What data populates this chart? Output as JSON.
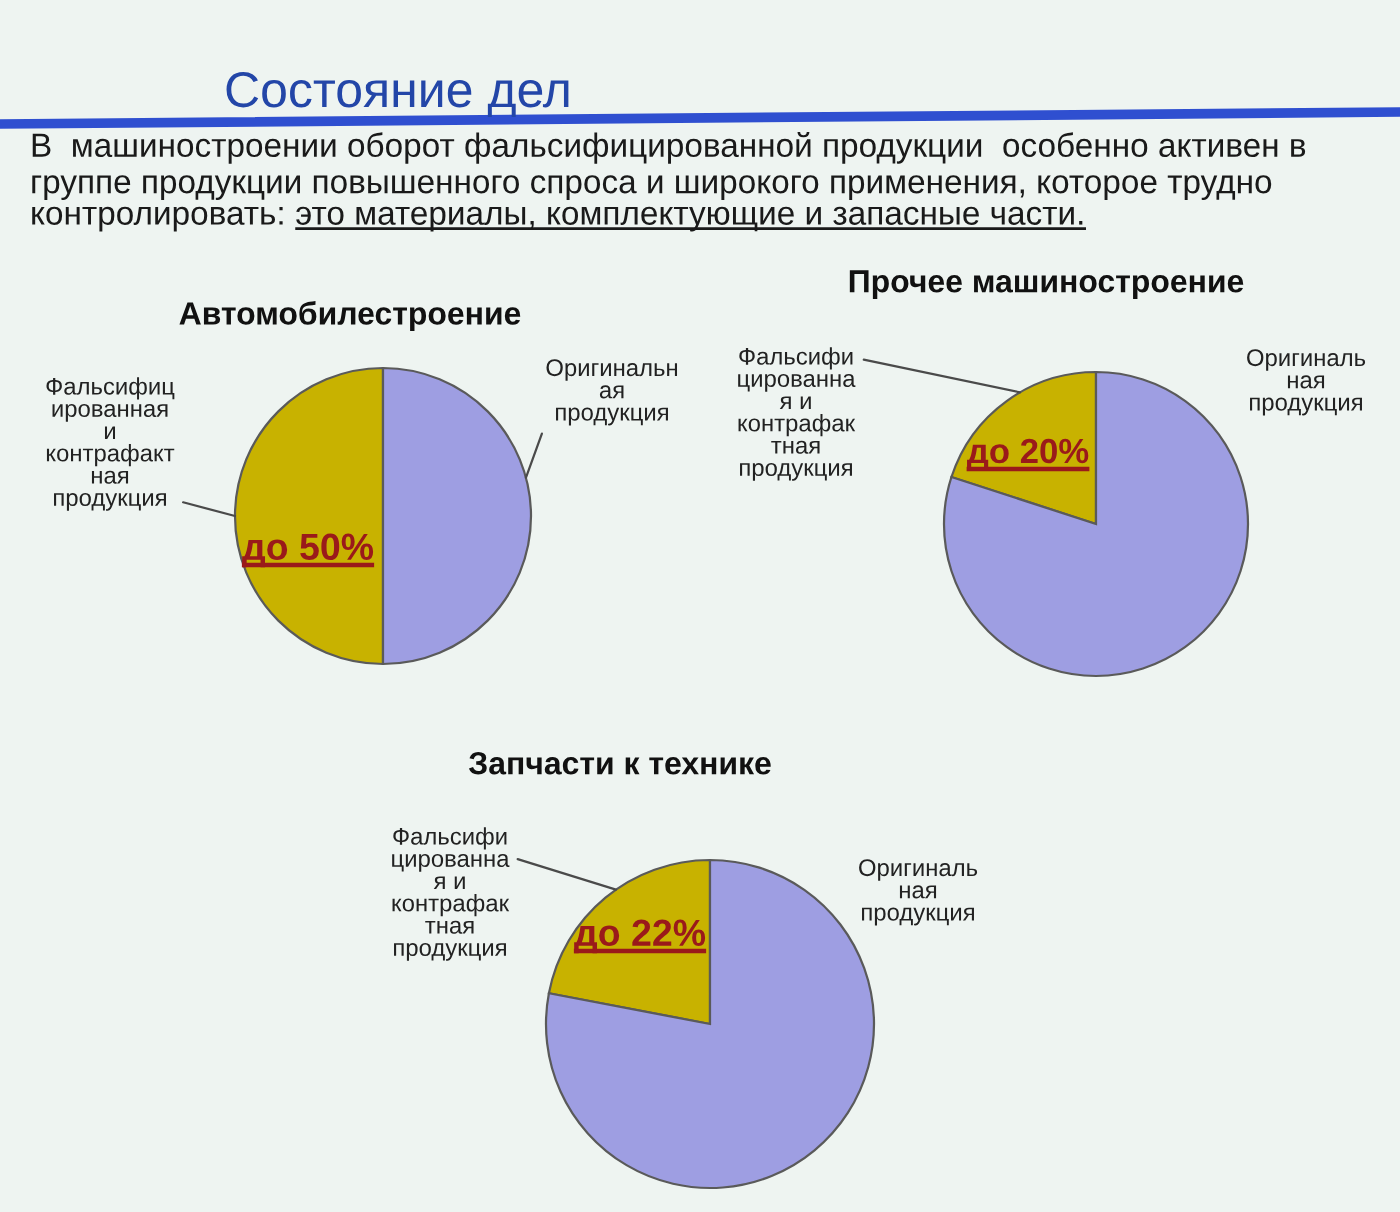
{
  "chart_data": [
    {
      "type": "other",
      "title": "Состояние дел",
      "subtitle": "В  машиностроении оборот фальсифицированной продукции  особенно активен в\nгруппе продукции повышенного спроса и широкого применения, которое трудно",
      "annotations": [
        "контролировать:",
        "это материалы, комплектующие и запасные части."
      ]
    },
    {
      "type": "pie",
      "title": "Автомобилестроение",
      "categories": [
        "Фальсифиц\nированная\nи\nконтрафакт\nная\nпродукция",
        "Оригинальн\nая\nпродукция"
      ],
      "values": [
        50,
        50
      ],
      "colors": [
        "#c8b200",
        "#9e9ee2"
      ],
      "value_labels": [
        "до 50%",
        null
      ]
    },
    {
      "type": "pie",
      "title": "Прочее машиностроение",
      "categories": [
        "Фальсифи\nцированна\nя и\nконтрафак\nтная\nпродукция",
        "Оригиналь\nная\nпродукция"
      ],
      "values": [
        20,
        80
      ],
      "colors": [
        "#c8b200",
        "#9e9ee2"
      ],
      "value_labels": [
        "до 20%",
        null
      ]
    },
    {
      "type": "pie",
      "title": "Запчасти к технике",
      "categories": [
        "Фальсифи\nцированна\nя и\nконтрафак\nтная\nпродукция",
        "Оригиналь\nная\nпродукция"
      ],
      "values": [
        22,
        78
      ],
      "colors": [
        "#c8b200",
        "#9e9ee2"
      ],
      "value_labels": [
        "до 22%",
        null
      ]
    }
  ]
}
